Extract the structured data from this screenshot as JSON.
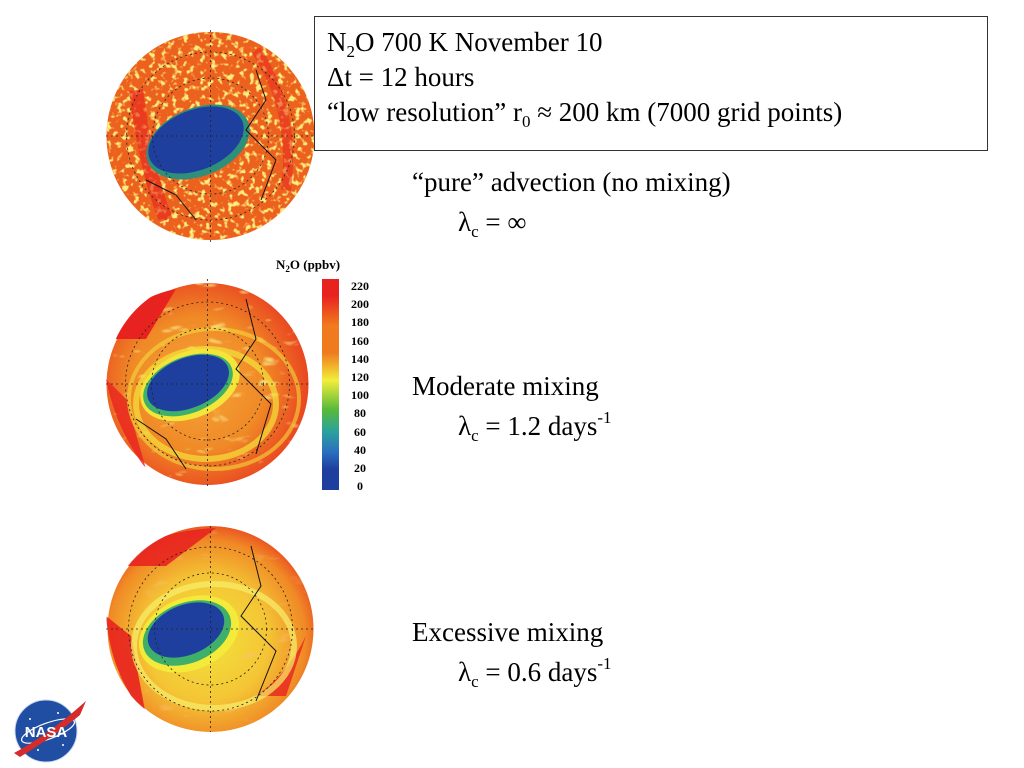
{
  "header_box": {
    "line1": {
      "n": "N",
      "n_sub": "2",
      "rest": "O  700 K  November 10"
    },
    "line2": "Δt = 12 hours",
    "line3": {
      "pre": "“low resolution” r",
      "r_sub": "0",
      "post": " ≈ 200 km (7000 grid points)"
    }
  },
  "panels": [
    {
      "caption": "“pure” advection (no mixing)",
      "lambda": "λ",
      "lambda_sub": "c",
      "value": " = ∞",
      "exponent": ""
    },
    {
      "caption": "Moderate mixing",
      "lambda": "λ",
      "lambda_sub": "c",
      "value": " = 1.2 days",
      "exponent": "-1"
    },
    {
      "caption": "Excessive mixing",
      "lambda": "λ",
      "lambda_sub": "c",
      "value": " = 0.6 days",
      "exponent": "-1"
    }
  ],
  "colorbar": {
    "title_n": "N",
    "title_sub": "2",
    "title_rest": "O (ppbv)",
    "ticks": [
      "220",
      "200",
      "180",
      "160",
      "140",
      "120",
      "100",
      "80",
      "60",
      "40",
      "20",
      "0"
    ]
  },
  "colors": {
    "red": "#e8231f",
    "orange": "#f07a1e",
    "yellow": "#f2ee3a",
    "green": "#57b93a",
    "blue": "#1f3f9e"
  },
  "logo_text": "NASA"
}
